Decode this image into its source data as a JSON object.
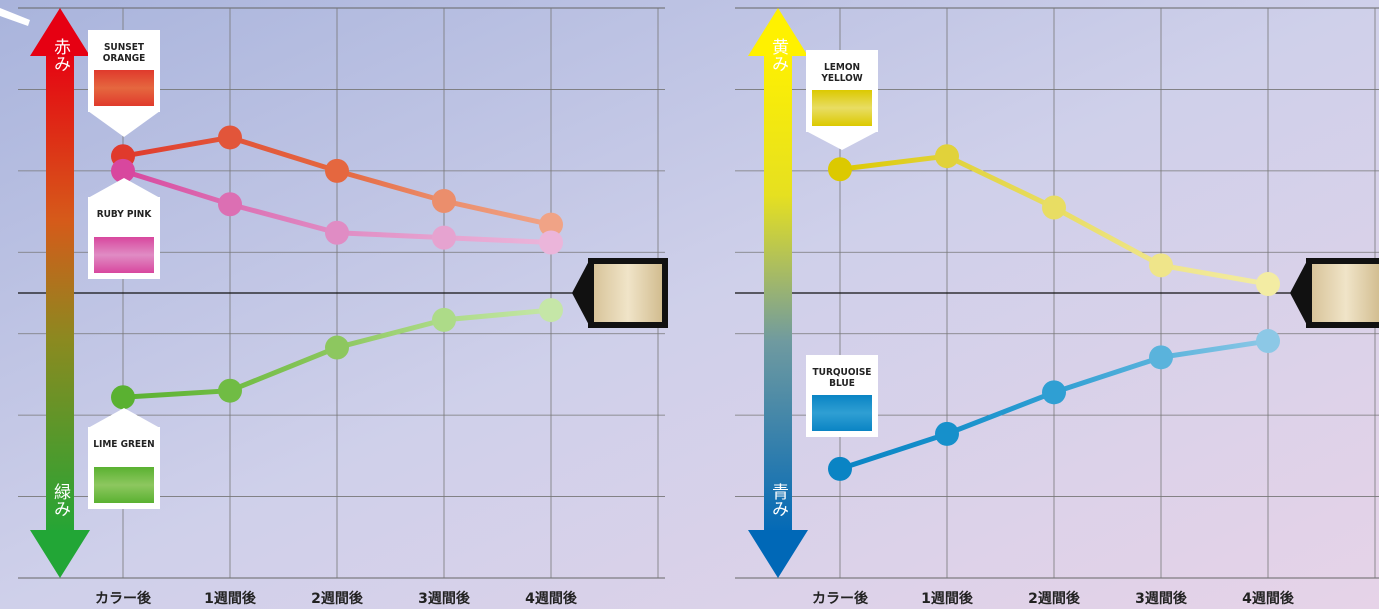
{
  "chart_data": [
    {
      "type": "line",
      "axis_top": "赤み",
      "axis_bottom": "緑み",
      "categories": [
        "カラー後",
        "1週間後",
        "2週間後",
        "3週間後",
        "4週間後"
      ],
      "series": [
        {
          "name": "SUNSET ORANGE",
          "colors": [
            "#e03a2c",
            "#e2553a",
            "#e5673f",
            "#eb8e6c",
            "#f0a386"
          ],
          "values": [
            1.68,
            1.91,
            1.5,
            1.13,
            0.84
          ]
        },
        {
          "name": "RUBY PINK",
          "colors": [
            "#d8479e",
            "#dc6fb3",
            "#e08cc4",
            "#e6a3d0",
            "#ebb5da"
          ],
          "values": [
            1.5,
            1.09,
            0.74,
            0.68,
            0.62
          ]
        },
        {
          "name": "LIME GREEN",
          "colors": [
            "#5ab131",
            "#70bc44",
            "#8dc75f",
            "#addb88",
            "#c5e6a7"
          ],
          "values": [
            -1.28,
            -1.2,
            -0.67,
            -0.33,
            -0.21
          ]
        }
      ],
      "ylim": [
        -3.5,
        3.5
      ],
      "yticks": [
        -2.5,
        -1.5,
        -0.5,
        0.5,
        1.5,
        2.5
      ],
      "baseline": 0,
      "grid": true
    },
    {
      "type": "line",
      "axis_top": "黄み",
      "axis_bottom": "青み",
      "categories": [
        "カラー後",
        "1週間後",
        "2週間後",
        "3週間後",
        "4週間後"
      ],
      "series": [
        {
          "name": "LEMON YELLOW",
          "colors": [
            "#dcc900",
            "#e1d23a",
            "#e8dd63",
            "#efe58a",
            "#f3eca3"
          ],
          "values": [
            1.52,
            1.68,
            1.05,
            0.34,
            0.11
          ]
        },
        {
          "name": "TURQUOISE BLUE",
          "colors": [
            "#0a84c4",
            "#1690cb",
            "#2f9fd3",
            "#5ab3dc",
            "#8cc8e6"
          ],
          "values": [
            -2.16,
            -1.73,
            -1.22,
            -0.79,
            -0.59
          ]
        }
      ],
      "ylim": [
        -3.5,
        3.5
      ],
      "yticks": [
        -2.5,
        -1.5,
        -0.5,
        0.5,
        1.5,
        2.5
      ],
      "baseline": 0,
      "grid": true
    }
  ]
}
